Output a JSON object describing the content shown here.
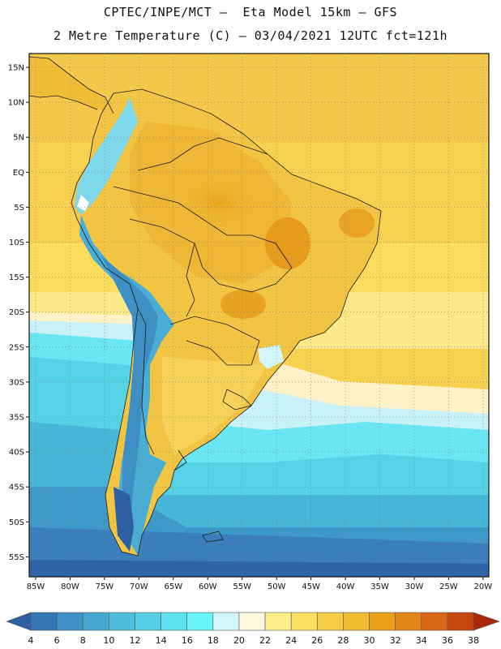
{
  "title_line1": "CPTEC/INPE/MCT –  Eta Model 15km – GFS",
  "title_line2": "2 Metre Temperature (C) – 03/04/2021 12UTC fct=121h",
  "lat_labels": [
    "15N",
    "10N",
    "5N",
    "EQ",
    "5S",
    "10S",
    "15S",
    "20S",
    "25S",
    "30S",
    "35S",
    "40S",
    "45S",
    "50S",
    "55S"
  ],
  "lon_labels": [
    "85W",
    "80W",
    "75W",
    "70W",
    "65W",
    "60W",
    "55W",
    "50W",
    "45W",
    "40W",
    "35W",
    "30W",
    "25W",
    "20W"
  ],
  "colorbar": {
    "labels": [
      "4",
      "6",
      "8",
      "10",
      "12",
      "14",
      "16",
      "18",
      "20",
      "22",
      "24",
      "26",
      "28",
      "30",
      "32",
      "34",
      "36",
      "38"
    ],
    "colors": [
      "#2e5fa3",
      "#3577b5",
      "#3d8fc4",
      "#46a6d2",
      "#4fbcdc",
      "#55cfe6",
      "#5be3ef",
      "#6af5f8",
      "#d2f6fa",
      "#fff7de",
      "#fcef8a",
      "#fadf63",
      "#f5cd46",
      "#efbb30",
      "#eaa21d",
      "#e2861a",
      "#d86614",
      "#c6460c",
      "#a9280a"
    ]
  }
}
